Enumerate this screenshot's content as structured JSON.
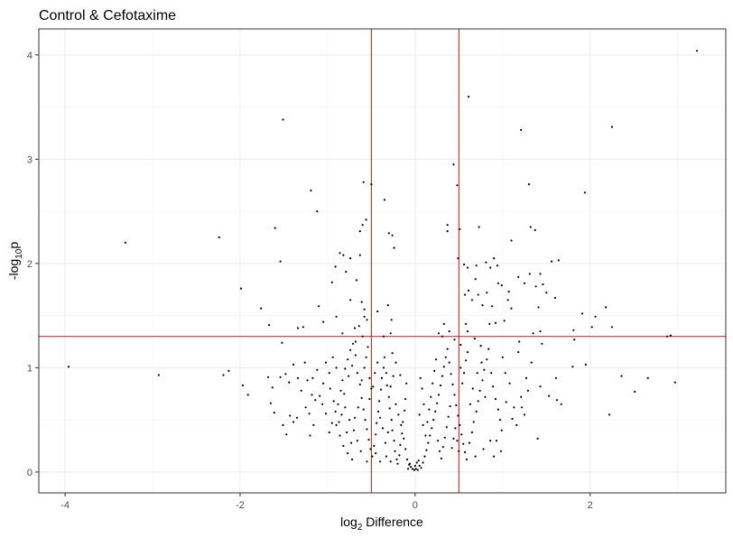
{
  "chart_data": {
    "type": "scatter",
    "title": "Control & Cefotaxime",
    "xlabel": {
      "prefix": "log",
      "sub": "2",
      "suffix": " Difference"
    },
    "ylabel": {
      "prefix": "-log",
      "sub": "10",
      "suffix": "p"
    },
    "xlim": [
      -4.3,
      3.55
    ],
    "ylim": [
      -0.2,
      4.25
    ],
    "x_ticks": [
      -4,
      -2,
      0,
      2
    ],
    "x_tick_labels": [
      "-4",
      "-2",
      "0",
      "2"
    ],
    "y_ticks": [
      0,
      1,
      2,
      3,
      4
    ],
    "y_tick_labels": [
      "0",
      "1",
      "2",
      "3",
      "4"
    ],
    "grid": true,
    "threshold_color": "#b2182b",
    "vlines": [
      -0.5,
      0.5
    ],
    "hline": 1.3,
    "points": [
      [
        3.22,
        4.04
      ],
      [
        0.61,
        3.6
      ],
      [
        -1.51,
        3.38
      ],
      [
        1.21,
        3.28
      ],
      [
        2.25,
        3.31
      ],
      [
        0.44,
        2.95
      ],
      [
        -0.5,
        2.76
      ],
      [
        1.3,
        2.76
      ],
      [
        0.48,
        2.75
      ],
      [
        1.94,
        2.68
      ],
      [
        -0.59,
        2.78
      ],
      [
        -1.19,
        2.7
      ],
      [
        -0.35,
        2.61
      ],
      [
        -1.12,
        2.5
      ],
      [
        -3.31,
        2.2
      ],
      [
        -2.24,
        2.25
      ],
      [
        -1.6,
        2.34
      ],
      [
        -0.56,
        2.42
      ],
      [
        -0.3,
        2.29
      ],
      [
        -0.26,
        2.27
      ],
      [
        -0.24,
        2.15
      ],
      [
        -0.6,
        2.37
      ],
      [
        -0.63,
        2.31
      ],
      [
        0.37,
        2.37
      ],
      [
        0.37,
        2.31
      ],
      [
        0.51,
        2.33
      ],
      [
        0.73,
        2.35
      ],
      [
        1.32,
        2.35
      ],
      [
        1.37,
        2.32
      ],
      [
        1.1,
        2.22
      ],
      [
        -1.54,
        2.02
      ],
      [
        -1.99,
        1.76
      ],
      [
        -1.76,
        1.57
      ],
      [
        -1.67,
        1.41
      ],
      [
        -1.34,
        1.38
      ],
      [
        -1.28,
        1.39
      ],
      [
        -1.52,
        1.24
      ],
      [
        -1.1,
        1.59
      ],
      [
        -1.05,
        1.44
      ],
      [
        -0.86,
        2.1
      ],
      [
        -0.82,
        2.08
      ],
      [
        -0.74,
        2.05
      ],
      [
        -0.63,
        2.08
      ],
      [
        -0.91,
        1.97
      ],
      [
        -0.79,
        1.92
      ],
      [
        -0.95,
        1.82
      ],
      [
        -0.67,
        1.84
      ],
      [
        -0.74,
        1.65
      ],
      [
        -0.61,
        1.63
      ],
      [
        -0.58,
        1.56
      ],
      [
        -0.9,
        1.49
      ],
      [
        -0.83,
        1.33
      ],
      [
        -0.69,
        1.38
      ],
      [
        -0.58,
        1.49
      ],
      [
        -0.55,
        1.46
      ],
      [
        -0.43,
        1.54
      ],
      [
        -0.31,
        1.6
      ],
      [
        -0.27,
        1.46
      ],
      [
        -0.36,
        1.3
      ],
      [
        -0.28,
        1.33
      ],
      [
        0.49,
        2.05
      ],
      [
        0.56,
        1.99
      ],
      [
        0.6,
        1.96
      ],
      [
        0.7,
        1.98
      ],
      [
        0.81,
        2.01
      ],
      [
        0.86,
        1.96
      ],
      [
        0.9,
        2.05
      ],
      [
        0.94,
        1.98
      ],
      [
        0.95,
        1.81
      ],
      [
        0.99,
        1.79
      ],
      [
        0.69,
        1.85
      ],
      [
        0.61,
        1.74
      ],
      [
        0.65,
        1.65
      ],
      [
        0.57,
        1.7
      ],
      [
        0.72,
        1.7
      ],
      [
        0.77,
        1.6
      ],
      [
        0.82,
        1.72
      ],
      [
        0.88,
        1.59
      ],
      [
        1.07,
        1.73
      ],
      [
        1.06,
        1.65
      ],
      [
        1.18,
        1.87
      ],
      [
        1.25,
        1.81
      ],
      [
        1.31,
        1.9
      ],
      [
        1.43,
        1.9
      ],
      [
        1.46,
        1.8
      ],
      [
        1.38,
        1.78
      ],
      [
        1.5,
        1.72
      ],
      [
        1.56,
        2.02
      ],
      [
        1.64,
        2.03
      ],
      [
        1.6,
        1.67
      ],
      [
        1.41,
        1.58
      ],
      [
        1.1,
        1.57
      ],
      [
        1.02,
        1.45
      ],
      [
        0.92,
        1.43
      ],
      [
        0.85,
        1.42
      ],
      [
        0.6,
        1.35
      ],
      [
        0.58,
        1.42
      ],
      [
        0.33,
        1.42
      ],
      [
        0.39,
        1.35
      ],
      [
        0.27,
        1.33
      ],
      [
        0.31,
        1.3
      ],
      [
        0.45,
        1.27
      ],
      [
        0.52,
        1.22
      ],
      [
        0.68,
        1.28
      ],
      [
        0.75,
        1.21
      ],
      [
        1.19,
        1.25
      ],
      [
        1.18,
        1.15
      ],
      [
        1.35,
        1.33
      ],
      [
        1.43,
        1.35
      ],
      [
        1.45,
        1.23
      ],
      [
        2.06,
        1.49
      ],
      [
        2.02,
        1.39
      ],
      [
        2.18,
        1.58
      ],
      [
        2.25,
        1.39
      ],
      [
        1.91,
        1.52
      ],
      [
        1.81,
        1.36
      ],
      [
        1.82,
        1.27
      ],
      [
        2.92,
        1.31
      ],
      [
        2.88,
        1.3
      ],
      [
        2.36,
        0.92
      ],
      [
        1.95,
        1.03
      ],
      [
        1.8,
        1.01
      ],
      [
        1.43,
        0.82
      ],
      [
        1.53,
        0.73
      ],
      [
        1.62,
        0.69
      ],
      [
        1.67,
        0.65
      ],
      [
        1.61,
        0.9
      ],
      [
        2.22,
        0.55
      ],
      [
        2.51,
        0.77
      ],
      [
        2.97,
        0.86
      ],
      [
        2.66,
        0.9
      ],
      [
        1.4,
        0.32
      ],
      [
        1.21,
        0.72
      ],
      [
        1.22,
        0.62
      ],
      [
        1.13,
        0.62
      ],
      [
        1.04,
        0.67
      ],
      [
        1.11,
        0.51
      ],
      [
        -3.96,
        1.01
      ],
      [
        -2.93,
        0.93
      ],
      [
        -2.19,
        0.93
      ],
      [
        -2.13,
        0.97
      ],
      [
        -1.97,
        0.83
      ],
      [
        -1.91,
        0.74
      ],
      [
        -1.68,
        0.91
      ],
      [
        -1.63,
        0.81
      ],
      [
        -1.65,
        0.66
      ],
      [
        -1.61,
        0.57
      ],
      [
        -1.54,
        0.91
      ],
      [
        -1.48,
        0.94
      ],
      [
        -1.44,
        0.86
      ],
      [
        -1.39,
        1.03
      ],
      [
        -1.34,
        0.9
      ],
      [
        -1.23,
        0.88
      ],
      [
        -1.17,
        0.9
      ],
      [
        -1.12,
        0.98
      ],
      [
        -1.51,
        0.45
      ],
      [
        -1.47,
        0.36
      ],
      [
        -1.43,
        0.54
      ],
      [
        -1.39,
        0.48
      ],
      [
        -1.35,
        0.52
      ],
      [
        -1.25,
        0.62
      ],
      [
        -1.21,
        0.56
      ],
      [
        -1.18,
        0.74
      ],
      [
        -1.14,
        0.69
      ],
      [
        -1.09,
        0.73
      ],
      [
        -1.05,
        0.85
      ],
      [
        -1.02,
        1.05
      ],
      [
        -0.98,
        0.95
      ],
      [
        -0.94,
        1.1
      ],
      [
        -0.9,
        1.0
      ],
      [
        -1.02,
        0.56
      ],
      [
        -0.98,
        0.38
      ],
      [
        -0.95,
        0.47
      ],
      [
        -0.91,
        0.58
      ],
      [
        -0.88,
        0.65
      ],
      [
        -0.85,
        0.78
      ],
      [
        -0.83,
        0.88
      ],
      [
        -0.8,
        0.99
      ],
      [
        -0.77,
        1.08
      ],
      [
        -0.74,
        1.17
      ],
      [
        -0.71,
        1.23
      ],
      [
        -0.68,
        1.12
      ],
      [
        -0.66,
        0.95
      ],
      [
        -0.63,
        0.84
      ],
      [
        -0.61,
        0.71
      ],
      [
        -0.59,
        0.6
      ],
      [
        -0.57,
        0.5
      ],
      [
        -0.55,
        0.41
      ],
      [
        -0.53,
        0.31
      ],
      [
        -0.51,
        0.22
      ],
      [
        -0.49,
        0.15
      ],
      [
        -0.47,
        0.25
      ],
      [
        -0.45,
        0.36
      ],
      [
        -0.44,
        0.47
      ],
      [
        -0.42,
        0.58
      ],
      [
        -0.41,
        0.68
      ],
      [
        -0.39,
        0.79
      ],
      [
        -0.38,
        0.9
      ],
      [
        -0.36,
        1.0
      ],
      [
        -0.35,
        1.1
      ],
      [
        -0.33,
        0.95
      ],
      [
        -0.32,
        0.83
      ],
      [
        -0.3,
        0.72
      ],
      [
        -0.29,
        0.61
      ],
      [
        -0.27,
        0.5
      ],
      [
        -0.26,
        0.4
      ],
      [
        -0.24,
        0.3
      ],
      [
        -0.23,
        0.2
      ],
      [
        -0.21,
        0.12
      ],
      [
        -0.2,
        0.08
      ],
      [
        -0.18,
        0.16
      ],
      [
        -0.17,
        0.26
      ],
      [
        -0.15,
        0.37
      ],
      [
        -0.14,
        0.48
      ],
      [
        -0.12,
        0.59
      ],
      [
        -0.11,
        0.7
      ],
      [
        -0.1,
        0.85
      ],
      [
        -0.17,
        0.93
      ],
      [
        -0.22,
        1.05
      ],
      [
        -0.26,
        1.14
      ],
      [
        -0.7,
        0.4
      ],
      [
        -0.66,
        0.3
      ],
      [
        -0.75,
        0.5
      ],
      [
        -0.8,
        0.62
      ],
      [
        -0.62,
        0.2
      ],
      [
        -0.55,
        0.1
      ],
      [
        -0.45,
        0.18
      ],
      [
        -0.4,
        0.1
      ],
      [
        -0.33,
        0.15
      ],
      [
        -0.28,
        0.1
      ],
      [
        -0.9,
        0.45
      ],
      [
        -0.86,
        0.35
      ],
      [
        -0.82,
        0.25
      ],
      [
        -0.77,
        0.18
      ],
      [
        -0.72,
        0.12
      ],
      [
        -0.52,
        0.7
      ],
      [
        -0.48,
        0.82
      ],
      [
        -0.46,
        0.95
      ],
      [
        -0.43,
        1.05
      ],
      [
        -0.4,
        0.52
      ],
      [
        -0.37,
        0.42
      ],
      [
        -0.34,
        0.28
      ],
      [
        -0.31,
        0.38
      ],
      [
        -0.28,
        0.82
      ],
      [
        -0.25,
        0.92
      ],
      [
        -0.22,
        0.65
      ],
      [
        -0.19,
        0.55
      ],
      [
        -0.16,
        0.45
      ],
      [
        -0.13,
        0.32
      ],
      [
        -0.11,
        0.22
      ],
      [
        -0.09,
        0.12
      ],
      [
        -0.07,
        0.07
      ],
      [
        -0.05,
        0.05
      ],
      [
        -0.03,
        0.03
      ],
      [
        -0.01,
        0.02
      ],
      [
        0.01,
        0.03
      ],
      [
        0.03,
        0.02
      ],
      [
        0.05,
        0.06
      ],
      [
        0.07,
        0.04
      ],
      [
        0.09,
        0.09
      ],
      [
        -0.08,
        0.03
      ],
      [
        -0.06,
        0.08
      ],
      [
        0.0,
        0.06
      ],
      [
        0.02,
        0.09
      ],
      [
        0.04,
        0.11
      ],
      [
        0.11,
        0.15
      ],
      [
        0.13,
        0.21
      ],
      [
        0.15,
        0.28
      ],
      [
        0.17,
        0.35
      ],
      [
        0.19,
        0.42
      ],
      [
        0.21,
        0.5
      ],
      [
        0.23,
        0.58
      ],
      [
        0.25,
        0.66
      ],
      [
        0.27,
        0.74
      ],
      [
        0.29,
        0.83
      ],
      [
        0.31,
        0.92
      ],
      [
        0.33,
        1.01
      ],
      [
        0.35,
        1.1
      ],
      [
        0.37,
        1.18
      ],
      [
        0.39,
        1.05
      ],
      [
        0.41,
        0.94
      ],
      [
        0.43,
        0.84
      ],
      [
        0.45,
        0.74
      ],
      [
        0.47,
        0.64
      ],
      [
        0.49,
        0.54
      ],
      [
        0.51,
        0.45
      ],
      [
        0.53,
        0.36
      ],
      [
        0.55,
        0.27
      ],
      [
        0.57,
        0.19
      ],
      [
        0.59,
        0.12
      ],
      [
        0.12,
        0.35
      ],
      [
        0.14,
        0.48
      ],
      [
        0.16,
        0.6
      ],
      [
        0.18,
        0.72
      ],
      [
        0.2,
        0.85
      ],
      [
        0.22,
        0.97
      ],
      [
        0.24,
        1.08
      ],
      [
        0.26,
        0.3
      ],
      [
        0.28,
        0.2
      ],
      [
        0.3,
        0.13
      ],
      [
        0.32,
        0.24
      ],
      [
        0.34,
        0.33
      ],
      [
        0.36,
        0.43
      ],
      [
        0.38,
        0.53
      ],
      [
        0.4,
        0.63
      ],
      [
        0.42,
        0.23
      ],
      [
        0.44,
        0.32
      ],
      [
        0.46,
        0.42
      ],
      [
        0.48,
        0.3
      ],
      [
        0.5,
        0.2
      ],
      [
        0.06,
        0.9
      ],
      [
        0.08,
        0.8
      ],
      [
        0.1,
        0.65
      ],
      [
        0.05,
        0.55
      ],
      [
        0.09,
        0.45
      ],
      [
        0.62,
        0.28
      ],
      [
        0.65,
        0.38
      ],
      [
        0.67,
        0.48
      ],
      [
        0.7,
        0.58
      ],
      [
        0.72,
        0.68
      ],
      [
        0.74,
        0.78
      ],
      [
        0.77,
        0.88
      ],
      [
        0.79,
        0.98
      ],
      [
        0.82,
        1.08
      ],
      [
        0.84,
        1.18
      ],
      [
        0.87,
        0.95
      ],
      [
        0.89,
        0.82
      ],
      [
        0.92,
        0.7
      ],
      [
        0.95,
        0.6
      ],
      [
        0.97,
        0.5
      ],
      [
        0.99,
        0.4
      ],
      [
        0.86,
        0.3
      ],
      [
        0.78,
        0.22
      ],
      [
        0.69,
        0.15
      ],
      [
        0.63,
        0.65
      ],
      [
        0.66,
        0.8
      ],
      [
        0.71,
        0.95
      ],
      [
        0.76,
        1.05
      ],
      [
        0.8,
        0.72
      ],
      [
        0.93,
        0.3
      ],
      [
        0.54,
        0.85
      ],
      [
        0.56,
        0.95
      ],
      [
        0.58,
        1.07
      ],
      [
        0.6,
        1.15
      ],
      [
        0.52,
        1.0
      ],
      [
        -0.64,
        1.4
      ],
      [
        -0.6,
        1.3
      ],
      [
        -0.68,
        1.25
      ],
      [
        -0.72,
        1.02
      ],
      [
        -0.76,
        0.92
      ],
      [
        -0.81,
        0.75
      ],
      [
        -0.84,
        0.55
      ],
      [
        -0.87,
        0.48
      ],
      [
        -0.93,
        0.68
      ],
      [
        -0.97,
        0.8
      ],
      [
        -0.78,
        0.38
      ],
      [
        -0.73,
        0.28
      ],
      [
        -0.69,
        0.52
      ],
      [
        -0.65,
        0.62
      ],
      [
        -0.61,
        0.88
      ],
      [
        -0.58,
        1.0
      ],
      [
        -0.56,
        1.1
      ],
      [
        -0.54,
        1.2
      ],
      [
        -0.52,
        0.9
      ],
      [
        -0.5,
        0.8
      ],
      [
        -1.26,
        1.05
      ],
      [
        -1.3,
        0.78
      ],
      [
        -1.06,
        0.65
      ],
      [
        -1.16,
        0.45
      ],
      [
        -1.2,
        0.35
      ],
      [
        1.27,
        0.9
      ],
      [
        1.29,
        0.78
      ],
      [
        1.33,
        1.05
      ],
      [
        1.25,
        0.55
      ],
      [
        1.16,
        0.45
      ],
      [
        1.08,
        0.85
      ],
      [
        1.03,
        0.95
      ],
      [
        1.0,
        1.1
      ],
      [
        0.98,
        0.2
      ],
      [
        0.9,
        0.15
      ]
    ]
  }
}
